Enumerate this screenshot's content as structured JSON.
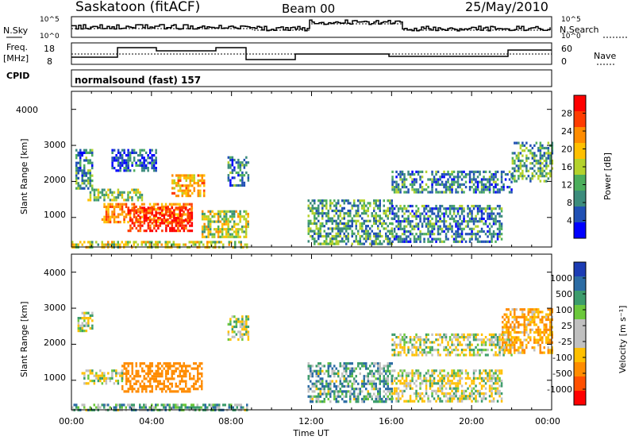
{
  "header": {
    "station": "Saskatoon (fitACF)",
    "beam": "Beam 00",
    "date": "25/May/2010"
  },
  "top_panel": {
    "left_label_1": "N.Sky",
    "right_label_1": "N.Search",
    "noise_ticks": [
      "10^5",
      "10^0"
    ],
    "left_label_2a": "Freq.",
    "left_label_2b": "[MHz]",
    "freq_ticks": [
      "18",
      "8"
    ],
    "right_label_2": "Nave",
    "nave_ticks": [
      "60",
      "0"
    ],
    "cpid_label": "CPID",
    "cpid_text": "normalsound (fast) 157"
  },
  "x_axis": {
    "label": "Time UT",
    "ticks": [
      "00:00",
      "04:00",
      "08:00",
      "12:00",
      "16:00",
      "20:00",
      "00:00"
    ]
  },
  "power_panel": {
    "ylabel": "Slant Range [km]",
    "yticks": [
      "4000",
      "3000",
      "2000",
      "1000"
    ],
    "colorbar_label": "Power [dB]",
    "colorbar_ticks": [
      "28",
      "24",
      "20",
      "16",
      "12",
      "8",
      "4"
    ],
    "colors": [
      "#ff0000",
      "#ff3c00",
      "#ff8c00",
      "#ffc000",
      "#b4d22c",
      "#4cae5c",
      "#3c8c7c",
      "#2050b4",
      "#0000ff"
    ]
  },
  "velocity_panel": {
    "ylabel": "Slant Range [km]",
    "yticks": [
      "4000",
      "3000",
      "2000",
      "1000"
    ],
    "colorbar_label": "Velocity [m s⁻¹]",
    "colorbar_ticks": [
      "1000",
      "500",
      "100",
      "25",
      "-25",
      "-100",
      "-500",
      "-1000"
    ],
    "colors": [
      "#1c3cb4",
      "#2c6ca4",
      "#3c9c6c",
      "#6cc83c",
      "#c0c0c0",
      "#c0c0c0",
      "#ffc000",
      "#ff8c00",
      "#ff5000",
      "#ff0000"
    ]
  },
  "chart_data": {
    "type": "heatmap",
    "title": "Saskatoon (fitACF) Beam 00 25/May/2010",
    "xlabel": "Time UT",
    "ylabel": "Slant Range [km]",
    "xlim_hours": [
      0,
      24
    ],
    "ylim_km": [
      180,
      4500
    ],
    "panels": [
      {
        "name": "Power [dB]",
        "range": [
          0,
          30
        ],
        "regions": [
          {
            "t": [
              0.0,
              8.8
            ],
            "r": [
              200,
              350
            ],
            "value": 14
          },
          {
            "t": [
              0.2,
              1.0
            ],
            "r": [
              1800,
              2900
            ],
            "value": 8
          },
          {
            "t": [
              0.8,
              3.5
            ],
            "r": [
              1500,
              1800
            ],
            "value": 12
          },
          {
            "t": [
              1.5,
              6.0
            ],
            "r": [
              900,
              1400
            ],
            "value": 20
          },
          {
            "t": [
              2.8,
              6.0
            ],
            "r": [
              650,
              1300
            ],
            "value": 26
          },
          {
            "t": [
              2.0,
              4.2
            ],
            "r": [
              2300,
              2900
            ],
            "value": 6
          },
          {
            "t": [
              5.0,
              6.6
            ],
            "r": [
              1600,
              2200
            ],
            "value": 18
          },
          {
            "t": [
              6.5,
              8.8
            ],
            "r": [
              450,
              1200
            ],
            "value": 14
          },
          {
            "t": [
              7.8,
              8.8
            ],
            "r": [
              1900,
              2700
            ],
            "value": 8
          },
          {
            "t": [
              11.8,
              16.0
            ],
            "r": [
              300,
              1500
            ],
            "value": 10
          },
          {
            "t": [
              16.0,
              21.5
            ],
            "r": [
              300,
              1350
            ],
            "value": 8
          },
          {
            "t": [
              16.0,
              22.0
            ],
            "r": [
              1700,
              2300
            ],
            "value": 8
          },
          {
            "t": [
              22.0,
              24.0
            ],
            "r": [
              2000,
              3100
            ],
            "value": 10
          }
        ]
      },
      {
        "name": "Velocity [m s-1]",
        "range": [
          -1000,
          1000
        ],
        "regions": [
          {
            "t": [
              0.0,
              8.8
            ],
            "r": [
              200,
              350
            ],
            "value": 60
          },
          {
            "t": [
              0.3,
              1.0
            ],
            "r": [
              2400,
              2900
            ],
            "value": 0
          },
          {
            "t": [
              2.5,
              6.5
            ],
            "r": [
              700,
              1500
            ],
            "value": -200
          },
          {
            "t": [
              0.5,
              2.5
            ],
            "r": [
              900,
              1300
            ],
            "value": 0
          },
          {
            "t": [
              7.8,
              8.8
            ],
            "r": [
              2100,
              2800
            ],
            "value": 0
          },
          {
            "t": [
              11.8,
              16.0
            ],
            "r": [
              400,
              1500
            ],
            "value": 60
          },
          {
            "t": [
              16.0,
              21.5
            ],
            "r": [
              400,
              1300
            ],
            "value": 0
          },
          {
            "t": [
              16.0,
              22.0
            ],
            "r": [
              1700,
              2300
            ],
            "value": 0
          },
          {
            "t": [
              21.5,
              24.0
            ],
            "r": [
              1800,
              3000
            ],
            "value": -100
          }
        ]
      }
    ]
  }
}
